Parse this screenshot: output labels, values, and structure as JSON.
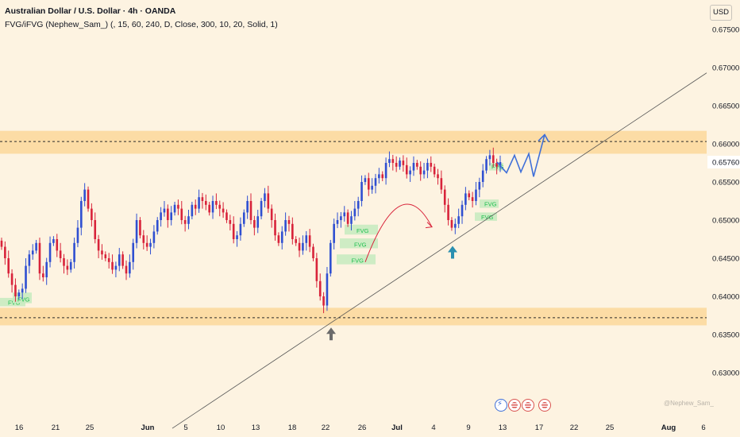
{
  "header": {
    "title": "Australian Dollar / U.S. Dollar · 4h · OANDA",
    "indicator": "FVG/iFVG (Nephew_Sam_) (, 15, 60, 240, D, Close, 300, 10, 20, Solid, 1)",
    "currency": "USD"
  },
  "watermark": "@Nephew_Sam_",
  "colors": {
    "background": "#fdf3e1",
    "zone": "#fcd79a",
    "bull_candle": "#2f4fd1",
    "bear_candle": "#d8233a",
    "fvg_box": "#c9ebc1",
    "fvg_text": "#1fbf4f",
    "projection": "#3f6fd8",
    "curve": "#d8233a",
    "arrow_up_blue": "#2a8fb0",
    "arrow_up_gray": "#6b6b6b",
    "current_price_bg": "#ffffff"
  },
  "chart_data": {
    "type": "candlestick",
    "symbol": "AUDUSD",
    "timeframe": "4h",
    "y_ticks": [
      0.675,
      0.67,
      0.665,
      0.66,
      0.655,
      0.65,
      0.645,
      0.64,
      0.635,
      0.63
    ],
    "y_tick_labels": [
      "0.67500",
      "0.67000",
      "0.66500",
      "0.66000",
      "0.65500",
      "0.65000",
      "0.64500",
      "0.64000",
      "0.63500",
      "0.63000"
    ],
    "ylim": [
      0.6265,
      0.6778
    ],
    "current_price": 0.6576,
    "current_price_label": "0.65760",
    "x_tick_labels": [
      "16",
      "21",
      "25",
      "Jun",
      "5",
      "10",
      "13",
      "18",
      "22",
      "26",
      "Jul",
      "4",
      "9",
      "13",
      "17",
      "22",
      "25",
      "Aug",
      "6"
    ],
    "zones": [
      {
        "from": 0.6587,
        "to": 0.6617,
        "line": 0.6603
      },
      {
        "from": 0.6362,
        "to": 0.6385,
        "line": 0.6372
      }
    ],
    "trendline": {
      "from": {
        "x": "May 30",
        "y": 0.6227
      },
      "to": {
        "x": "Aug 5",
        "y": 0.6693
      }
    },
    "fvg_label": "FVG",
    "fvgs": [
      {
        "low": 0.6387,
        "high": 0.6398
      },
      {
        "low": 0.6391,
        "high": 0.6405
      },
      {
        "low": 0.6442,
        "high": 0.6455
      },
      {
        "low": 0.6463,
        "high": 0.6476
      },
      {
        "low": 0.6481,
        "high": 0.6494
      },
      {
        "low": 0.6516,
        "high": 0.6527
      },
      {
        "low": 0.6499,
        "high": 0.651
      },
      {
        "low": 0.6565,
        "high": 0.6575
      }
    ],
    "closes": [
      0.6465,
      0.645,
      0.643,
      0.6415,
      0.64,
      0.6405,
      0.641,
      0.644,
      0.6455,
      0.646,
      0.647,
      0.643,
      0.6425,
      0.6445,
      0.647,
      0.6475,
      0.646,
      0.645,
      0.644,
      0.6435,
      0.6445,
      0.647,
      0.649,
      0.6525,
      0.654,
      0.6515,
      0.65,
      0.6475,
      0.646,
      0.6455,
      0.645,
      0.6445,
      0.6435,
      0.644,
      0.6455,
      0.644,
      0.643,
      0.6445,
      0.647,
      0.65,
      0.648,
      0.647,
      0.6465,
      0.647,
      0.6485,
      0.65,
      0.651,
      0.6515,
      0.65,
      0.651,
      0.652,
      0.6515,
      0.65,
      0.6495,
      0.6505,
      0.652,
      0.6515,
      0.653,
      0.6525,
      0.652,
      0.651,
      0.6525,
      0.652,
      0.6515,
      0.651,
      0.65,
      0.6495,
      0.6475,
      0.648,
      0.6495,
      0.651,
      0.6525,
      0.65,
      0.649,
      0.6505,
      0.6525,
      0.6535,
      0.6515,
      0.65,
      0.648,
      0.647,
      0.6485,
      0.65,
      0.6495,
      0.6475,
      0.647,
      0.646,
      0.647,
      0.648,
      0.6465,
      0.645,
      0.642,
      0.64,
      0.6388,
      0.643,
      0.647,
      0.6495,
      0.65,
      0.6505,
      0.651,
      0.6495,
      0.6505,
      0.6515,
      0.6525,
      0.655,
      0.6555,
      0.654,
      0.6545,
      0.6555,
      0.656,
      0.6555,
      0.6575,
      0.658,
      0.6575,
      0.657,
      0.6578,
      0.6572,
      0.656,
      0.6565,
      0.6575,
      0.657,
      0.656,
      0.6565,
      0.6575,
      0.657,
      0.656,
      0.6555,
      0.654,
      0.652,
      0.65,
      0.649,
      0.6495,
      0.6505,
      0.652,
      0.6535,
      0.653,
      0.6525,
      0.654,
      0.655,
      0.6565,
      0.658,
      0.6585,
      0.6575,
      0.657,
      0.6576
    ],
    "projection_path": [
      0.6576,
      0.6562,
      0.6585,
      0.6563,
      0.6587,
      0.6557,
      0.6612
    ],
    "annotations": {
      "curve": {
        "start": 0.6445,
        "peak": 0.6506,
        "end": 0.6491
      },
      "up_arrows": [
        {
          "at": 0.6487,
          "color": "blue"
        },
        {
          "at": 0.638,
          "color": "gray"
        }
      ]
    },
    "grid": false
  },
  "events_icons": [
    "lightning-icon",
    "flag-au-icon",
    "flag-us-icon",
    "flag-us-icon",
    "flag-us-icon"
  ]
}
